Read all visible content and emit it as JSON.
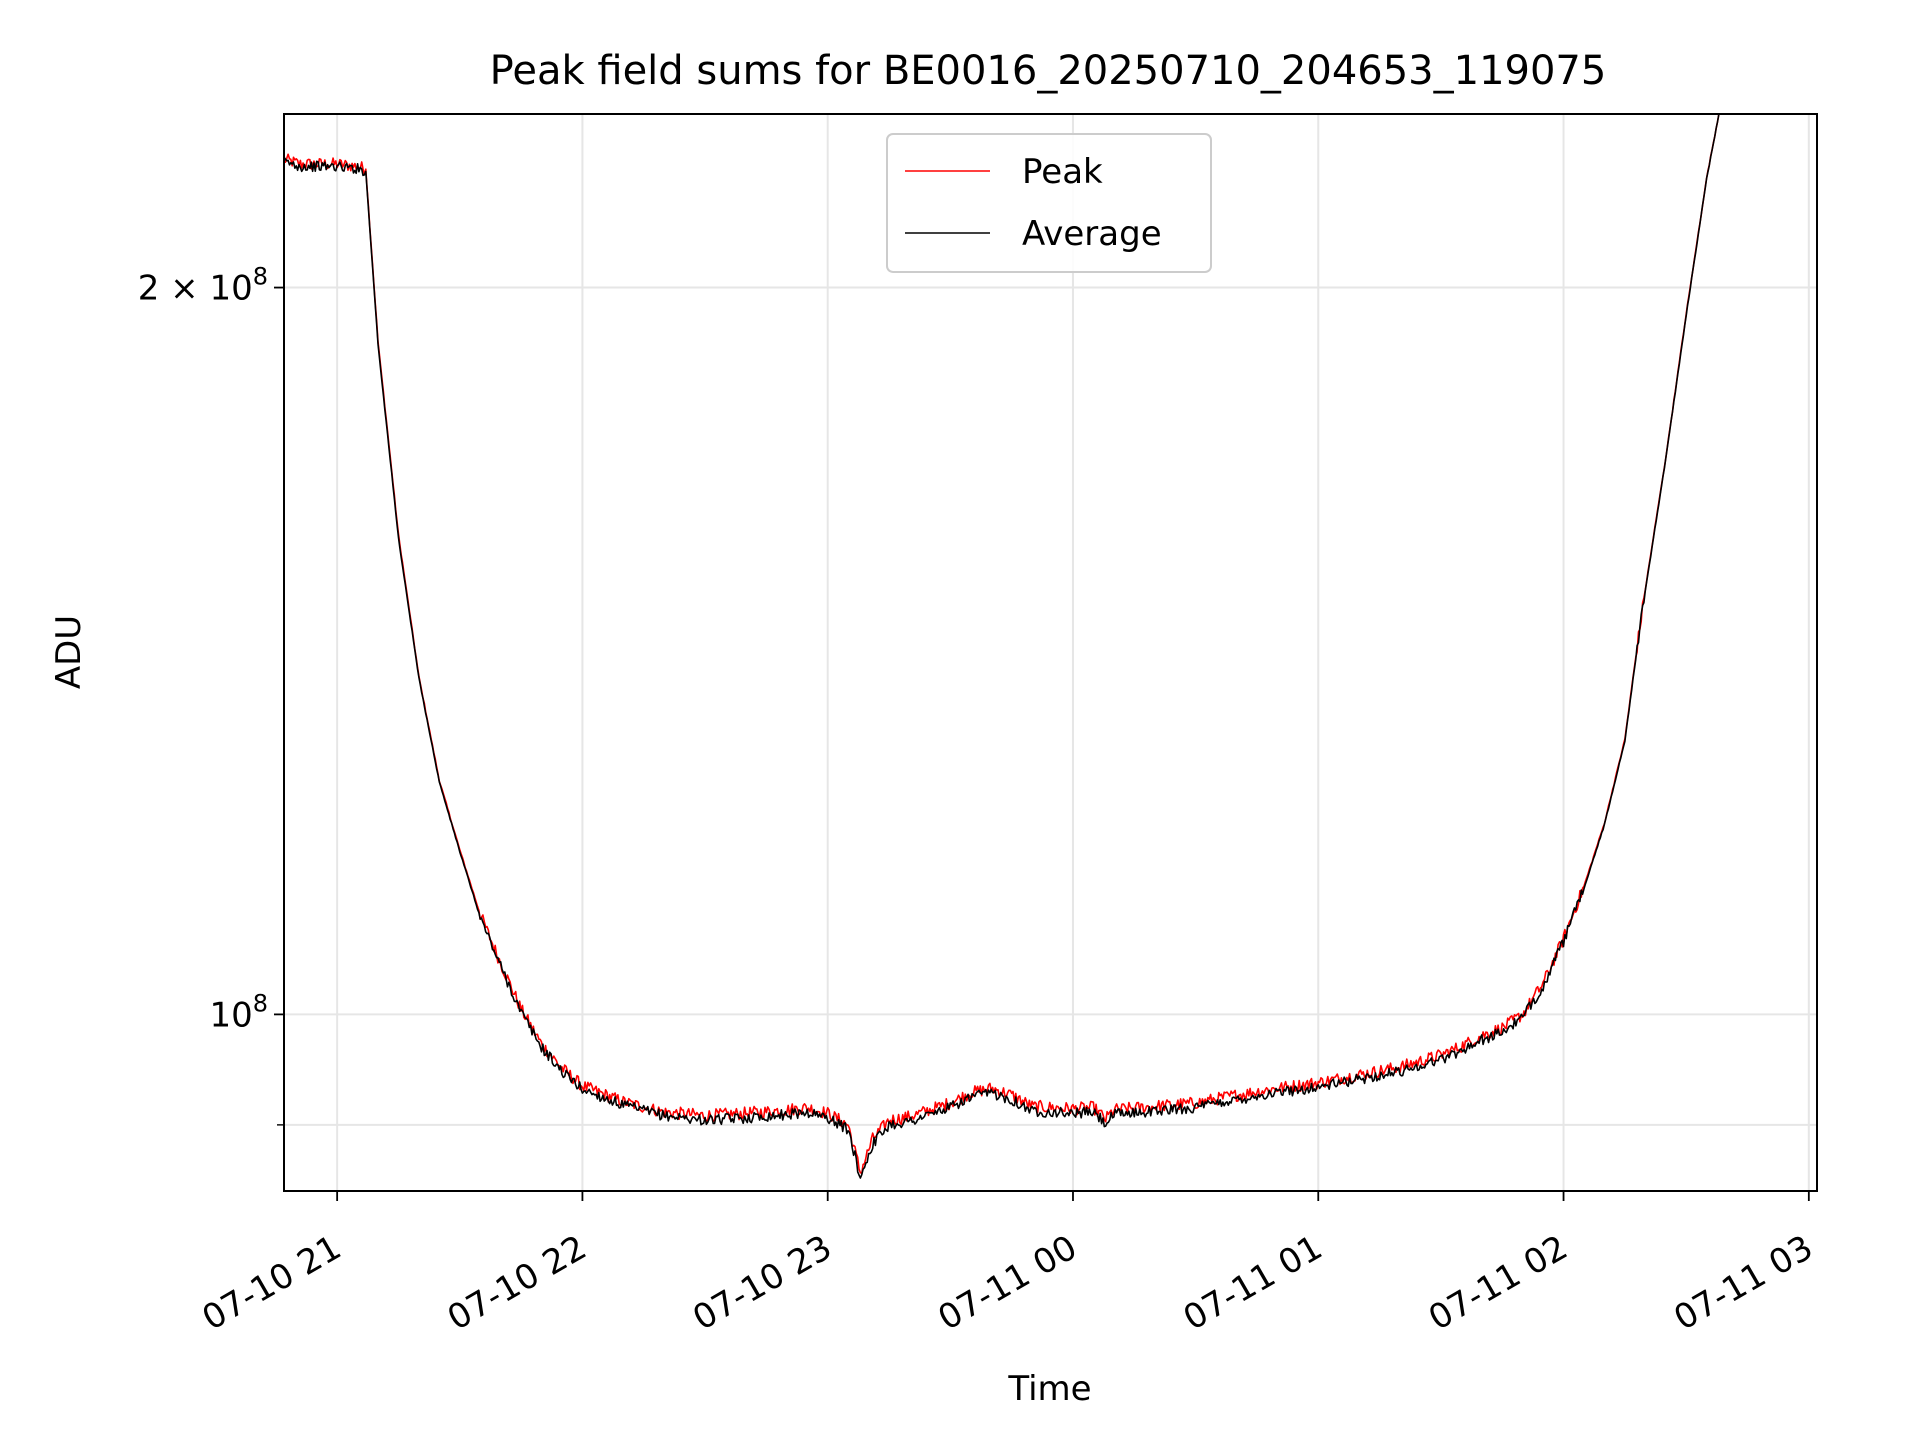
{
  "chart_data": {
    "type": "line",
    "title": "Peak field sums for BE0016_20250710_204653_119075",
    "xlabel": "Time",
    "ylabel": "ADU",
    "yscale": "log",
    "grid": true,
    "legend_position": "upper center",
    "xlim": [
      "2025-07-10 20:47",
      "2025-07-11 03:02"
    ],
    "ylim": [
      84500000,
      236000000
    ],
    "x_ticks": [
      {
        "value": "2025-07-10 21:00",
        "label": "07-10 21"
      },
      {
        "value": "2025-07-10 22:00",
        "label": "07-10 22"
      },
      {
        "value": "2025-07-10 23:00",
        "label": "07-10 23"
      },
      {
        "value": "2025-07-11 00:00",
        "label": "07-11 00"
      },
      {
        "value": "2025-07-11 01:00",
        "label": "07-11 01"
      },
      {
        "value": "2025-07-11 02:00",
        "label": "07-11 02"
      },
      {
        "value": "2025-07-11 03:00",
        "label": "07-11 03"
      }
    ],
    "y_ticks_major": [
      {
        "value": 100000000,
        "base": "10",
        "exp": "8",
        "coef": ""
      },
      {
        "value": 200000000,
        "base": "10",
        "exp": "8",
        "coef": "2 × "
      }
    ],
    "y_ticks_minor": [
      90000000
    ],
    "series": [
      {
        "name": "Peak",
        "color": "#ff0000",
        "x": [
          "2025-07-10 20:47",
          "2025-07-10 20:51",
          "2025-07-10 20:55",
          "2025-07-10 21:00",
          "2025-07-10 21:05",
          "2025-07-10 21:07",
          "2025-07-10 21:10",
          "2025-07-10 21:15",
          "2025-07-10 21:20",
          "2025-07-10 21:25",
          "2025-07-10 21:30",
          "2025-07-10 21:35",
          "2025-07-10 21:40",
          "2025-07-10 21:45",
          "2025-07-10 21:50",
          "2025-07-10 21:55",
          "2025-07-10 22:00",
          "2025-07-10 22:10",
          "2025-07-10 22:20",
          "2025-07-10 22:30",
          "2025-07-10 22:40",
          "2025-07-10 22:50",
          "2025-07-10 22:55",
          "2025-07-10 23:00",
          "2025-07-10 23:05",
          "2025-07-10 23:08",
          "2025-07-10 23:11",
          "2025-07-10 23:15",
          "2025-07-10 23:20",
          "2025-07-10 23:30",
          "2025-07-10 23:35",
          "2025-07-10 23:40",
          "2025-07-10 23:45",
          "2025-07-10 23:50",
          "2025-07-11 00:00",
          "2025-07-11 00:05",
          "2025-07-11 00:08",
          "2025-07-11 00:10",
          "2025-07-11 00:20",
          "2025-07-11 00:30",
          "2025-07-11 00:40",
          "2025-07-11 00:50",
          "2025-07-11 01:00",
          "2025-07-11 01:10",
          "2025-07-11 01:20",
          "2025-07-11 01:30",
          "2025-07-11 01:35",
          "2025-07-11 01:40",
          "2025-07-11 01:45",
          "2025-07-11 01:50",
          "2025-07-11 01:55",
          "2025-07-11 02:00",
          "2025-07-11 02:05",
          "2025-07-11 02:10",
          "2025-07-11 02:15",
          "2025-07-11 02:18",
          "2025-07-11 02:20",
          "2025-07-11 02:25",
          "2025-07-11 02:30",
          "2025-07-11 02:35",
          "2025-07-11 02:38"
        ],
        "values": [
          226000000,
          225000000,
          225000000,
          225000000,
          224500000,
          224000000,
          190000000,
          158000000,
          138000000,
          125000000,
          117000000,
          110000000,
          105000000,
          100500000,
          97200000,
          95000000,
          93400000,
          92000000,
          91100000,
          90800000,
          91000000,
          91300000,
          91500000,
          91000000,
          90000000,
          86000000,
          88800000,
          90400000,
          90700000,
          91900000,
          92800000,
          93200000,
          92600000,
          91600000,
          91400000,
          91500000,
          90500000,
          91300000,
          91600000,
          91900000,
          92600000,
          93200000,
          93700000,
          94400000,
          95100000,
          96200000,
          97000000,
          98000000,
          98700000,
          100000000,
          103000000,
          107500000,
          113000000,
          120000000,
          130000000,
          142000000,
          150000000,
          170000000,
          195000000,
          222000000,
          236000000
        ],
        "noise_amplitude": 0.006
      },
      {
        "name": "Average",
        "color": "#000000",
        "x": [
          "2025-07-10 20:47",
          "2025-07-10 20:51",
          "2025-07-10 20:55",
          "2025-07-10 21:00",
          "2025-07-10 21:05",
          "2025-07-10 21:07",
          "2025-07-10 21:10",
          "2025-07-10 21:15",
          "2025-07-10 21:20",
          "2025-07-10 21:25",
          "2025-07-10 21:30",
          "2025-07-10 21:35",
          "2025-07-10 21:40",
          "2025-07-10 21:45",
          "2025-07-10 21:50",
          "2025-07-10 21:55",
          "2025-07-10 22:00",
          "2025-07-10 22:10",
          "2025-07-10 22:20",
          "2025-07-10 22:30",
          "2025-07-10 22:40",
          "2025-07-10 22:50",
          "2025-07-10 22:55",
          "2025-07-10 23:00",
          "2025-07-10 23:05",
          "2025-07-10 23:08",
          "2025-07-10 23:11",
          "2025-07-10 23:15",
          "2025-07-10 23:20",
          "2025-07-10 23:30",
          "2025-07-10 23:35",
          "2025-07-10 23:40",
          "2025-07-10 23:45",
          "2025-07-10 23:50",
          "2025-07-11 00:00",
          "2025-07-11 00:05",
          "2025-07-11 00:08",
          "2025-07-11 00:10",
          "2025-07-11 00:20",
          "2025-07-11 00:30",
          "2025-07-11 00:40",
          "2025-07-11 00:50",
          "2025-07-11 01:00",
          "2025-07-11 01:10",
          "2025-07-11 01:20",
          "2025-07-11 01:30",
          "2025-07-11 01:35",
          "2025-07-11 01:40",
          "2025-07-11 01:45",
          "2025-07-11 01:50",
          "2025-07-11 01:55",
          "2025-07-11 02:00",
          "2025-07-11 02:05",
          "2025-07-11 02:10",
          "2025-07-11 02:15",
          "2025-07-11 02:18",
          "2025-07-11 02:20",
          "2025-07-11 02:25",
          "2025-07-11 02:30",
          "2025-07-11 02:35",
          "2025-07-11 02:38"
        ],
        "values": [
          225500000,
          224500000,
          224500000,
          224500000,
          224000000,
          223500000,
          189500000,
          157500000,
          137800000,
          124800000,
          116800000,
          109700000,
          104700000,
          100200000,
          96900000,
          94700000,
          93100000,
          91700000,
          90800000,
          90400000,
          90600000,
          90900000,
          91100000,
          90600000,
          89600000,
          85600000,
          88400000,
          90000000,
          90300000,
          91500000,
          92400000,
          92800000,
          92200000,
          91200000,
          91000000,
          91100000,
          90100000,
          90900000,
          91200000,
          91500000,
          92200000,
          92800000,
          93300000,
          94000000,
          94700000,
          95800000,
          96600000,
          97600000,
          98300000,
          99700000,
          102700000,
          107200000,
          112800000,
          119800000,
          129800000,
          141800000,
          149800000,
          169800000,
          194800000,
          221800000,
          236000000
        ],
        "noise_amplitude": 0.005
      }
    ]
  }
}
